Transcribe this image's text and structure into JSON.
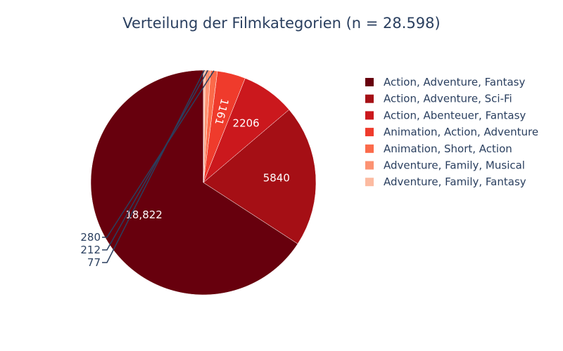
{
  "chart_data": {
    "type": "pie",
    "title": "Verteilung der Filmkategorien (n = 28.598)",
    "labels": [
      "Action, Adventure, Fantasy",
      "Action, Adventure, Sci-Fi",
      "Action, Abenteuer, Fantasy",
      "Animation, Action, Adventure",
      "Animation, Short, Action",
      "Adventure, Family, Musical",
      "Adventure, Family, Fantasy"
    ],
    "values": [
      18822,
      5840,
      2206,
      1161,
      280,
      212,
      77
    ],
    "value_labels": [
      "18,822",
      "5840",
      "2206",
      "1161",
      "280",
      "212",
      "77"
    ],
    "colors": [
      "#67000d",
      "#a50f15",
      "#cb181d",
      "#ef3b2c",
      "#fb6a4a",
      "#fc9272",
      "#fcbba1"
    ],
    "legend_position": "right",
    "direction": "counterclockwise",
    "start": "top"
  }
}
